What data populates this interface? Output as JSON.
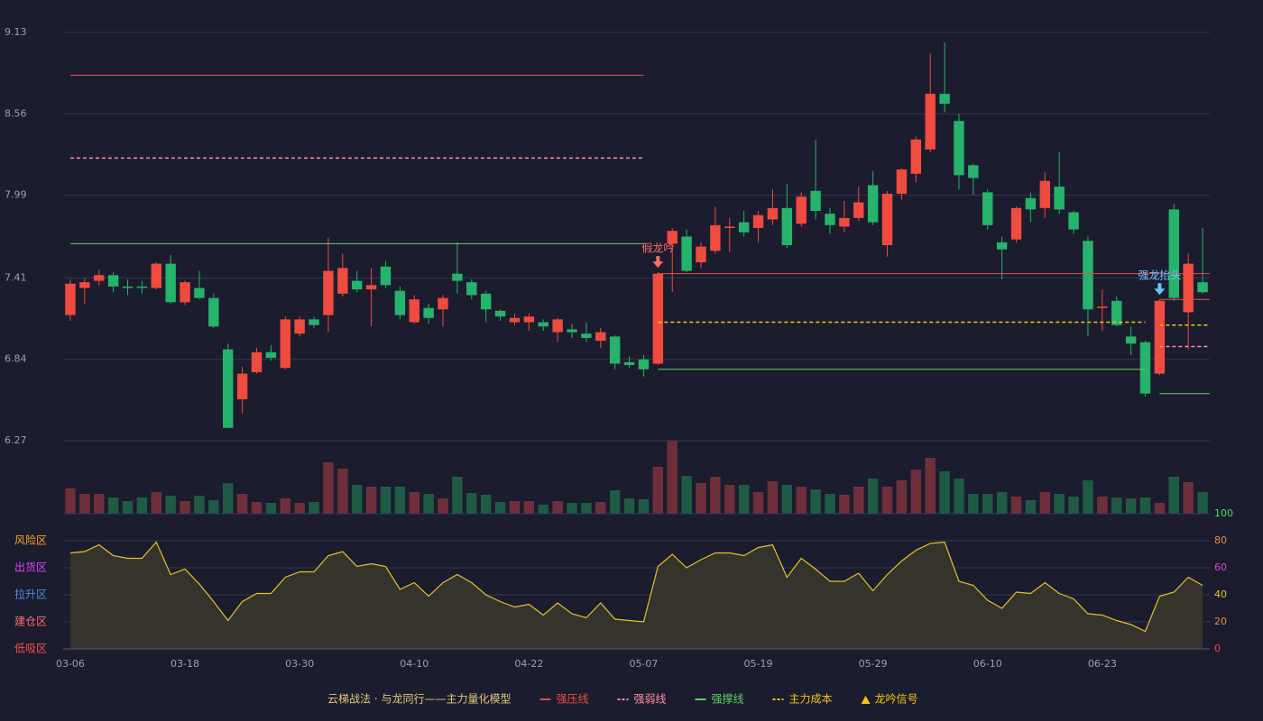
{
  "chart_data": [
    {
      "type": "candlestick",
      "categories": [
        "03-06",
        null,
        null,
        null,
        null,
        null,
        null,
        null,
        "03-18",
        null,
        null,
        null,
        null,
        null,
        null,
        null,
        "03-30",
        null,
        null,
        null,
        null,
        null,
        null,
        null,
        "04-10",
        null,
        null,
        null,
        null,
        null,
        null,
        null,
        "04-22",
        null,
        null,
        null,
        null,
        null,
        null,
        null,
        "05-07",
        null,
        null,
        null,
        null,
        null,
        null,
        null,
        "05-19",
        null,
        null,
        null,
        null,
        null,
        null,
        null,
        "05-29",
        null,
        null,
        null,
        null,
        null,
        null,
        null,
        "06-10",
        null,
        null,
        null,
        null,
        null,
        null,
        null,
        "06-23",
        null,
        null,
        null,
        null,
        null,
        null,
        null
      ],
      "open": [
        7.15,
        7.34,
        7.39,
        7.43,
        7.35,
        7.35,
        7.34,
        7.51,
        7.24,
        7.34,
        7.27,
        6.91,
        6.56,
        6.75,
        6.89,
        6.78,
        7.02,
        7.12,
        7.15,
        7.3,
        7.39,
        7.33,
        7.49,
        7.32,
        7.1,
        7.2,
        7.19,
        7.44,
        7.38,
        7.3,
        7.18,
        7.1,
        7.1,
        7.1,
        7.03,
        7.05,
        7.02,
        6.97,
        7.0,
        6.82,
        6.84,
        6.81,
        7.65,
        7.7,
        7.52,
        7.6,
        7.76,
        7.8,
        7.76,
        7.82,
        7.9,
        7.79,
        8.02,
        7.86,
        7.77,
        7.83,
        8.06,
        7.64,
        8.0,
        8.14,
        8.31,
        8.7,
        8.51,
        8.2,
        8.01,
        7.66,
        7.68,
        7.97,
        7.9,
        8.05,
        7.87,
        7.67,
        7.2,
        7.25,
        7.0,
        6.96,
        6.74,
        7.89,
        7.17,
        7.38
      ],
      "high": [
        7.4,
        7.41,
        7.47,
        7.45,
        7.4,
        7.39,
        7.52,
        7.57,
        7.39,
        7.46,
        7.3,
        6.95,
        6.79,
        6.92,
        6.94,
        7.14,
        7.14,
        7.14,
        7.69,
        7.58,
        7.46,
        7.48,
        7.53,
        7.35,
        7.29,
        7.23,
        7.29,
        7.66,
        7.4,
        7.32,
        7.19,
        7.16,
        7.16,
        7.12,
        7.13,
        7.09,
        7.1,
        7.06,
        7.01,
        6.86,
        6.87,
        7.45,
        7.76,
        7.75,
        7.66,
        7.91,
        7.83,
        7.88,
        7.88,
        8.03,
        8.07,
        8.01,
        8.38,
        7.9,
        7.95,
        8.05,
        8.16,
        8.02,
        8.18,
        8.4,
        8.98,
        9.06,
        8.56,
        8.21,
        8.03,
        7.7,
        7.91,
        8.01,
        8.15,
        8.29,
        7.88,
        7.7,
        7.33,
        7.28,
        7.07,
        6.97,
        7.26,
        7.93,
        7.58,
        7.76
      ],
      "low": [
        7.11,
        7.23,
        7.36,
        7.31,
        7.29,
        7.3,
        7.33,
        7.23,
        7.22,
        7.26,
        7.06,
        6.36,
        6.46,
        6.74,
        6.83,
        6.77,
        7.0,
        7.06,
        7.03,
        7.28,
        7.31,
        7.07,
        7.34,
        7.12,
        7.09,
        7.09,
        7.07,
        7.3,
        7.26,
        7.1,
        7.11,
        7.08,
        7.04,
        7.04,
        6.96,
        6.99,
        6.96,
        6.92,
        6.77,
        6.78,
        6.72,
        6.8,
        7.31,
        7.45,
        7.48,
        7.58,
        7.59,
        7.7,
        7.66,
        7.78,
        7.62,
        7.77,
        7.82,
        7.72,
        7.73,
        7.81,
        7.78,
        7.56,
        7.96,
        8.08,
        8.29,
        8.57,
        8.03,
        7.99,
        7.75,
        7.4,
        7.66,
        7.8,
        7.83,
        7.86,
        7.72,
        7.0,
        7.04,
        7.07,
        6.87,
        6.58,
        6.73,
        7.25,
        6.91,
        7.3
      ],
      "close": [
        7.37,
        7.38,
        7.43,
        7.35,
        7.34,
        7.34,
        7.51,
        7.24,
        7.38,
        7.27,
        7.07,
        6.36,
        6.74,
        6.89,
        6.85,
        7.12,
        7.12,
        7.08,
        7.46,
        7.48,
        7.33,
        7.36,
        7.36,
        7.15,
        7.26,
        7.13,
        7.27,
        7.39,
        7.29,
        7.19,
        7.14,
        7.13,
        7.14,
        7.07,
        7.12,
        7.03,
        6.99,
        7.03,
        6.81,
        6.8,
        6.77,
        7.44,
        7.74,
        7.46,
        7.63,
        7.78,
        7.77,
        7.73,
        7.85,
        7.9,
        7.64,
        7.98,
        7.88,
        7.78,
        7.83,
        7.94,
        7.8,
        8.0,
        8.17,
        8.38,
        8.7,
        8.63,
        8.13,
        8.11,
        7.78,
        7.61,
        7.9,
        7.89,
        8.09,
        7.89,
        7.75,
        7.19,
        7.21,
        7.08,
        6.95,
        6.6,
        7.25,
        7.27,
        7.51,
        7.31
      ],
      "volume": [
        28,
        22,
        22,
        18,
        14,
        18,
        24,
        20,
        14,
        20,
        15,
        34,
        22,
        13,
        12,
        17,
        12,
        13,
        57,
        50,
        32,
        30,
        30,
        30,
        24,
        22,
        17,
        41,
        23,
        21,
        13,
        14,
        14,
        10,
        14,
        12,
        12,
        13,
        26,
        17,
        16,
        52,
        81,
        42,
        34,
        41,
        32,
        32,
        24,
        36,
        32,
        30,
        27,
        22,
        21,
        30,
        39,
        30,
        37,
        49,
        62,
        47,
        39,
        22,
        22,
        24,
        19,
        15,
        24,
        22,
        19,
        37,
        19,
        18,
        17,
        18,
        12,
        41,
        35,
        24
      ],
      "up_color": "#ef4b3f",
      "down_color": "#26b36b",
      "volume_up_color": "#6e2f3a",
      "volume_down_color": "#1f5a45",
      "ylim": [
        6.27,
        9.13
      ],
      "yticks": [
        6.27,
        6.84,
        7.41,
        7.99,
        8.56,
        9.13
      ],
      "grid": true,
      "lines": [
        {
          "name": "强压线",
          "color": "#e84a4a",
          "dash": false,
          "levels": [
            {
              "value": 8.83,
              "from": 0,
              "to": 40
            },
            {
              "value": 7.44,
              "from": 41,
              "to": 79
            },
            {
              "value": 7.26,
              "from": 76,
              "to": 79
            }
          ]
        },
        {
          "name": "强弱线",
          "color": "#ff8fa3",
          "dash": true,
          "levels": [
            {
              "value": 8.25,
              "from": 0,
              "to": 40
            },
            {
              "value": 6.93,
              "from": 76,
              "to": 79
            }
          ]
        },
        {
          "name": "强撑线",
          "color": "#5fd35f",
          "dash": false,
          "levels": [
            {
              "value": 7.65,
              "from": 0,
              "to": 40
            },
            {
              "value": 6.77,
              "from": 41,
              "to": 75
            },
            {
              "value": 6.6,
              "from": 76,
              "to": 79
            }
          ]
        },
        {
          "name": "主力成本",
          "color": "#f5c518",
          "dash": true,
          "levels": [
            {
              "value": 7.1,
              "from": 41,
              "to": 75
            },
            {
              "value": 7.08,
              "from": 76,
              "to": 79
            }
          ]
        }
      ],
      "signals": [
        {
          "label": "假龙吟",
          "index": 41,
          "color": "#ff6b6b"
        },
        {
          "label": "强龙抬头",
          "index": 76,
          "color": "#6ec1ff"
        }
      ],
      "signal_legend": "龙吟信号",
      "signal_color": "#f5c518",
      "legend_title": "云梯战法 · 与龙同行——主力量化模型",
      "legend_title_color": "#e8c87a"
    },
    {
      "type": "line",
      "values": [
        71,
        72,
        77,
        69,
        67,
        67,
        79,
        55,
        59,
        48,
        35,
        21,
        35,
        41,
        41,
        53,
        57,
        57,
        69,
        72,
        61,
        63,
        61,
        44,
        49,
        39,
        49,
        55,
        49,
        40,
        35,
        31,
        33,
        25,
        34,
        26,
        23,
        34,
        22,
        21,
        20,
        61,
        70,
        60,
        66,
        71,
        71,
        69,
        75,
        77,
        53,
        67,
        59,
        50,
        50,
        56,
        43,
        55,
        65,
        73,
        78,
        79,
        50,
        47,
        36,
        30,
        42,
        41,
        49,
        41,
        37,
        26,
        25,
        21,
        18,
        13,
        39,
        42,
        53,
        47
      ],
      "color": "#e6c229",
      "fill": "#35332b",
      "ylim": [
        0,
        100
      ],
      "yticks": [
        0,
        20,
        40,
        60,
        80,
        100
      ],
      "ytick_colors": [
        "#e84a4a",
        "#f08a3e",
        "#e6c229",
        "#d04ad0",
        "#f08a3e",
        "#4cd964"
      ],
      "zones": [
        {
          "value": 0,
          "label": "低吸区"
        },
        {
          "value": 20,
          "label": "建仓区"
        },
        {
          "value": 40,
          "label": "拉升区"
        },
        {
          "value": 60,
          "label": "出货区"
        },
        {
          "value": 80,
          "label": "风险区"
        }
      ],
      "zone_colors": [
        "#ff4d4d",
        "#ff6b6b",
        "#4a90e2",
        "#e040fb",
        "#f5a623"
      ],
      "grid": true
    }
  ]
}
